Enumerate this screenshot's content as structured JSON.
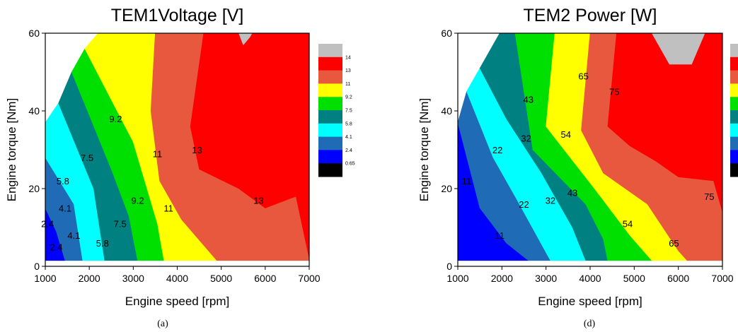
{
  "chart_data": [
    {
      "type": "contour",
      "title": "TEM1Voltage [V]",
      "xlabel": "Engine speed [rpm]",
      "ylabel": "Engine torque [Nm]",
      "caption": "(a)",
      "xlim": [
        1000,
        7000
      ],
      "ylim": [
        0,
        60
      ],
      "xticks": [
        1000,
        2000,
        3000,
        4000,
        5000,
        6000,
        7000
      ],
      "yticks": [
        0,
        20,
        40,
        60
      ],
      "legend": {
        "position": "right",
        "levels": [
          "14",
          "13",
          "11",
          "9.2",
          "7.5",
          "5.8",
          "4.1",
          "2.4",
          "0.65"
        ],
        "colors": [
          "#c0c0c0",
          "#ff0000",
          "#e8583f",
          "#ffff00",
          "#00e000",
          "#008080",
          "#00ffff",
          "#1f6bb5",
          "#0000ff",
          "#000000"
        ]
      },
      "bands": [
        {
          "color": "#0000ff",
          "poly": [
            [
              1000,
              1.5
            ],
            [
              1000,
              15
            ],
            [
              1250,
              9
            ],
            [
              1450,
              1.5
            ]
          ]
        },
        {
          "color": "#1f6bb5",
          "poly": [
            [
              1000,
              15
            ],
            [
              1000,
              28
            ],
            [
              1650,
              16
            ],
            [
              1850,
              1.5
            ],
            [
              1450,
              1.5
            ],
            [
              1250,
              9
            ]
          ]
        },
        {
          "color": "#00ffff",
          "poly": [
            [
              1000,
              28
            ],
            [
              1000,
              37
            ],
            [
              1300,
              42
            ],
            [
              2100,
              20
            ],
            [
              2350,
              1.5
            ],
            [
              1850,
              1.5
            ],
            [
              1650,
              16
            ]
          ]
        },
        {
          "color": "#008080",
          "poly": [
            [
              1300,
              42
            ],
            [
              1600,
              50
            ],
            [
              2500,
              25
            ],
            [
              2900,
              13
            ],
            [
              3100,
              1.5
            ],
            [
              2350,
              1.5
            ],
            [
              2100,
              20
            ]
          ]
        },
        {
          "color": "#00e000",
          "poly": [
            [
              1600,
              50
            ],
            [
              1900,
              56
            ],
            [
              3000,
              32
            ],
            [
              3550,
              11
            ],
            [
              3700,
              1.5
            ],
            [
              3100,
              1.5
            ],
            [
              2900,
              13
            ],
            [
              2500,
              25
            ]
          ]
        },
        {
          "color": "#ffff00",
          "poly": [
            [
              1900,
              56
            ],
            [
              2200,
              60
            ],
            [
              3500,
              60
            ],
            [
              3400,
              40
            ],
            [
              3600,
              22
            ],
            [
              4100,
              12
            ],
            [
              4900,
              1.5
            ],
            [
              3700,
              1.5
            ],
            [
              3550,
              11
            ],
            [
              3000,
              32
            ]
          ]
        },
        {
          "color": "#e8583f",
          "poly": [
            [
              3500,
              60
            ],
            [
              4600,
              60
            ],
            [
              4300,
              36
            ],
            [
              4500,
              25
            ],
            [
              5400,
              20
            ],
            [
              6000,
              15
            ],
            [
              6700,
              18
            ],
            [
              7000,
              2
            ],
            [
              7000,
              1.5
            ],
            [
              4900,
              1.5
            ],
            [
              4100,
              12
            ],
            [
              3600,
              22
            ],
            [
              3400,
              40
            ]
          ]
        },
        {
          "color": "#ff0000",
          "poly": [
            [
              4600,
              60
            ],
            [
              5700,
              60
            ],
            [
              5650,
              59
            ],
            [
              5500,
              57
            ],
            [
              5400,
              60
            ],
            [
              7000,
              60
            ],
            [
              7000,
              54
            ],
            [
              7000,
              2
            ],
            [
              6700,
              18
            ],
            [
              6000,
              15
            ],
            [
              5400,
              20
            ],
            [
              4500,
              25
            ],
            [
              4300,
              36
            ]
          ]
        },
        {
          "color": "#c0c0c0",
          "poly": [
            [
              5400,
              60
            ],
            [
              5500,
              57
            ],
            [
              5650,
              59
            ],
            [
              5700,
              60
            ]
          ]
        }
      ],
      "labels": [
        {
          "text": "9.2",
          "x": 2600,
          "y": 38
        },
        {
          "text": "7.5",
          "x": 1950,
          "y": 28
        },
        {
          "text": "11",
          "x": 3550,
          "y": 29
        },
        {
          "text": "13",
          "x": 4450,
          "y": 30
        },
        {
          "text": "5.8",
          "x": 1400,
          "y": 22
        },
        {
          "text": "4.1",
          "x": 1450,
          "y": 15
        },
        {
          "text": "9.2",
          "x": 3100,
          "y": 17
        },
        {
          "text": "11",
          "x": 3800,
          "y": 15
        },
        {
          "text": "13",
          "x": 5850,
          "y": 17
        },
        {
          "text": "2.4",
          "x": 1050,
          "y": 11
        },
        {
          "text": "7.5",
          "x": 2700,
          "y": 11
        },
        {
          "text": "4.1",
          "x": 1650,
          "y": 8
        },
        {
          "text": "5.8",
          "x": 2300,
          "y": 6
        },
        {
          "text": "2.4",
          "x": 1250,
          "y": 5
        }
      ]
    },
    {
      "type": "contour",
      "title": "TEM2 Power [W]",
      "xlabel": "Engine speed [rpm]",
      "ylabel": "Engine torque [Nm]",
      "caption": "(d)",
      "xlim": [
        1000,
        7000
      ],
      "ylim": [
        0,
        60
      ],
      "xticks": [
        1000,
        2000,
        3000,
        4000,
        5000,
        6000,
        7000
      ],
      "yticks": [
        0,
        20,
        40,
        60
      ],
      "legend": {
        "position": "right",
        "levels": [],
        "colors": [
          "#c0c0c0",
          "#ff0000",
          "#e8583f",
          "#ffff00",
          "#00e000",
          "#008080",
          "#00ffff",
          "#1f6bb5",
          "#0000ff",
          "#000000"
        ]
      },
      "bands": [
        {
          "color": "#0000ff",
          "poly": [
            [
              1000,
              1.5
            ],
            [
              1000,
              37
            ],
            [
              1500,
              15
            ],
            [
              2100,
              6
            ],
            [
              2600,
              1.5
            ]
          ]
        },
        {
          "color": "#1f6bb5",
          "poly": [
            [
              1000,
              37
            ],
            [
              1200,
              45
            ],
            [
              1800,
              28
            ],
            [
              2300,
              18
            ],
            [
              3100,
              1.5
            ],
            [
              2600,
              1.5
            ],
            [
              2100,
              6
            ],
            [
              1500,
              15
            ]
          ]
        },
        {
          "color": "#00ffff",
          "poly": [
            [
              1200,
              45
            ],
            [
              1500,
              51
            ],
            [
              2100,
              38
            ],
            [
              2900,
              24
            ],
            [
              3600,
              10
            ],
            [
              3900,
              1.5
            ],
            [
              3100,
              1.5
            ],
            [
              2300,
              18
            ],
            [
              1800,
              28
            ]
          ]
        },
        {
          "color": "#008080",
          "poly": [
            [
              1500,
              51
            ],
            [
              1950,
              60
            ],
            [
              2300,
              60
            ],
            [
              2700,
              30
            ],
            [
              3900,
              16
            ],
            [
              4300,
              7
            ],
            [
              4400,
              1.5
            ],
            [
              3900,
              1.5
            ],
            [
              3600,
              10
            ],
            [
              2900,
              24
            ],
            [
              2100,
              38
            ]
          ]
        },
        {
          "color": "#00e000",
          "poly": [
            [
              2300,
              60
            ],
            [
              3200,
              60
            ],
            [
              3000,
              36
            ],
            [
              4100,
              20
            ],
            [
              4900,
              8
            ],
            [
              5400,
              1.5
            ],
            [
              4400,
              1.5
            ],
            [
              4300,
              7
            ],
            [
              3900,
              16
            ],
            [
              2700,
              30
            ]
          ]
        },
        {
          "color": "#ffff00",
          "poly": [
            [
              3200,
              60
            ],
            [
              4000,
              60
            ],
            [
              3800,
              35
            ],
            [
              4300,
              24
            ],
            [
              5300,
              16
            ],
            [
              6000,
              4
            ],
            [
              6200,
              1.5
            ],
            [
              5400,
              1.5
            ],
            [
              4900,
              8
            ],
            [
              4100,
              20
            ],
            [
              3000,
              36
            ]
          ]
        },
        {
          "color": "#e8583f",
          "poly": [
            [
              4000,
              60
            ],
            [
              4600,
              60
            ],
            [
              4400,
              36
            ],
            [
              4900,
              31
            ],
            [
              5500,
              27
            ],
            [
              6000,
              23
            ],
            [
              6800,
              22
            ],
            [
              7000,
              14
            ],
            [
              7000,
              1.5
            ],
            [
              6200,
              1.5
            ],
            [
              6000,
              4
            ],
            [
              5300,
              16
            ],
            [
              4300,
              24
            ],
            [
              3800,
              35
            ]
          ]
        },
        {
          "color": "#ff0000",
          "poly": [
            [
              4600,
              60
            ],
            [
              5400,
              60
            ],
            [
              5800,
              52
            ],
            [
              6300,
              52
            ],
            [
              6600,
              60
            ],
            [
              7000,
              60
            ],
            [
              7000,
              14
            ],
            [
              6800,
              22
            ],
            [
              6000,
              23
            ],
            [
              5500,
              27
            ],
            [
              4900,
              31
            ],
            [
              4400,
              36
            ]
          ]
        },
        {
          "color": "#c0c0c0",
          "poly": [
            [
              5400,
              60
            ],
            [
              6600,
              60
            ],
            [
              6300,
              52
            ],
            [
              5800,
              52
            ]
          ]
        }
      ],
      "labels": [
        {
          "text": "65",
          "x": 3850,
          "y": 49
        },
        {
          "text": "75",
          "x": 4550,
          "y": 45
        },
        {
          "text": "43",
          "x": 2600,
          "y": 43
        },
        {
          "text": "54",
          "x": 3450,
          "y": 34
        },
        {
          "text": "32",
          "x": 2550,
          "y": 33
        },
        {
          "text": "22",
          "x": 1900,
          "y": 30
        },
        {
          "text": "11",
          "x": 1200,
          "y": 22
        },
        {
          "text": "43",
          "x": 3600,
          "y": 19
        },
        {
          "text": "32",
          "x": 3100,
          "y": 17
        },
        {
          "text": "22",
          "x": 2500,
          "y": 16
        },
        {
          "text": "75",
          "x": 6700,
          "y": 18
        },
        {
          "text": "54",
          "x": 4850,
          "y": 11
        },
        {
          "text": "11",
          "x": 1950,
          "y": 8
        },
        {
          "text": "65",
          "x": 5900,
          "y": 6
        }
      ]
    }
  ]
}
